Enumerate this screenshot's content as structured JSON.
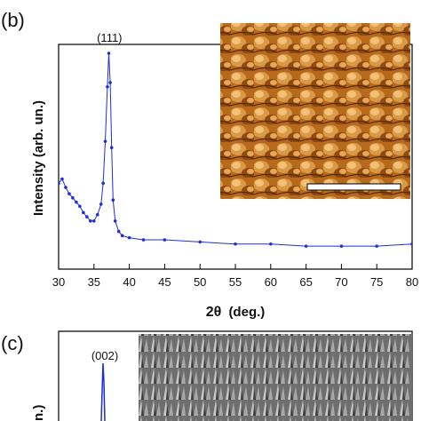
{
  "panel_b_label": "(b)",
  "panel_c_label": "(c)",
  "colors": {
    "series": "#1f2fd6",
    "axis": "#000000",
    "afm_dark": "#5a2a06",
    "afm_light": "#f0b060",
    "sem_gray": "#8a8a8a"
  },
  "inset_b": {
    "description_icon": "afm-topography-image",
    "scale_bar": true
  },
  "inset_c": {
    "description_icon": "sem-nanowire-image"
  },
  "chart_data": [
    {
      "type": "line",
      "xlabel_main": "2θ",
      "xlabel_unit": "(deg.)",
      "ylabel": "Intensity (arb. un.)",
      "xlim": [
        30,
        80
      ],
      "xticks": [
        "30",
        "35",
        "40",
        "45",
        "50",
        "55",
        "60",
        "65",
        "70",
        "75",
        "80"
      ],
      "annotation": "(111)",
      "annotation_x": 37.2,
      "series": [
        {
          "x": [
            30,
            30.5,
            31,
            31.5,
            32,
            32.5,
            33,
            33.5,
            34,
            34.5,
            35,
            35.5,
            36,
            36.3,
            36.6,
            36.9,
            37.1,
            37.3,
            37.5,
            37.7,
            38,
            38.5,
            39,
            40,
            42,
            45,
            50,
            55,
            60,
            65,
            70,
            75,
            80
          ],
          "y": [
            0.38,
            0.4,
            0.36,
            0.33,
            0.31,
            0.29,
            0.27,
            0.24,
            0.22,
            0.2,
            0.2,
            0.23,
            0.28,
            0.38,
            0.58,
            0.84,
            1.0,
            0.86,
            0.55,
            0.3,
            0.2,
            0.15,
            0.13,
            0.12,
            0.11,
            0.11,
            0.1,
            0.09,
            0.09,
            0.08,
            0.08,
            0.08,
            0.09
          ]
        }
      ]
    },
    {
      "type": "line",
      "annotation": "(002)",
      "ylabel_partial": "n.)"
    }
  ]
}
